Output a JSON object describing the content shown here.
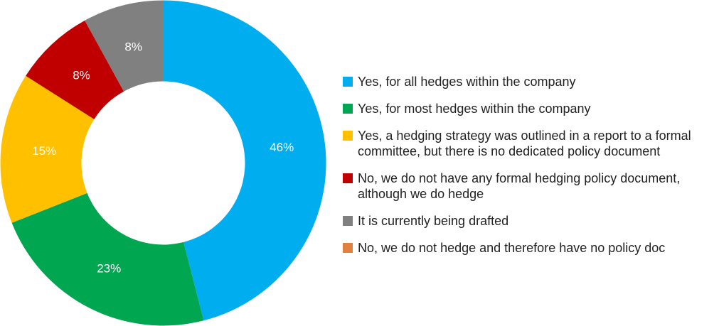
{
  "chart_data": {
    "type": "donut",
    "categories": [
      "Yes, for all hedges within the company",
      "Yes, for most hedges within the company",
      "Yes, a hedging strategy was outlined in a report to a formal committee, but there is no dedicated policy document",
      "No, we do not have any formal hedging policy document, although we do hedge",
      "It is currently being drafted",
      "No, we do not hedge and therefore have no policy doc"
    ],
    "values": [
      46,
      23,
      15,
      8,
      8,
      0
    ],
    "value_labels": [
      "46%",
      "23%",
      "15%",
      "8%",
      "8%",
      null
    ],
    "colors": [
      "#00aeef",
      "#00a650",
      "#ffc000",
      "#c00000",
      "#808080",
      "#e0823d"
    ],
    "legend": "right"
  }
}
